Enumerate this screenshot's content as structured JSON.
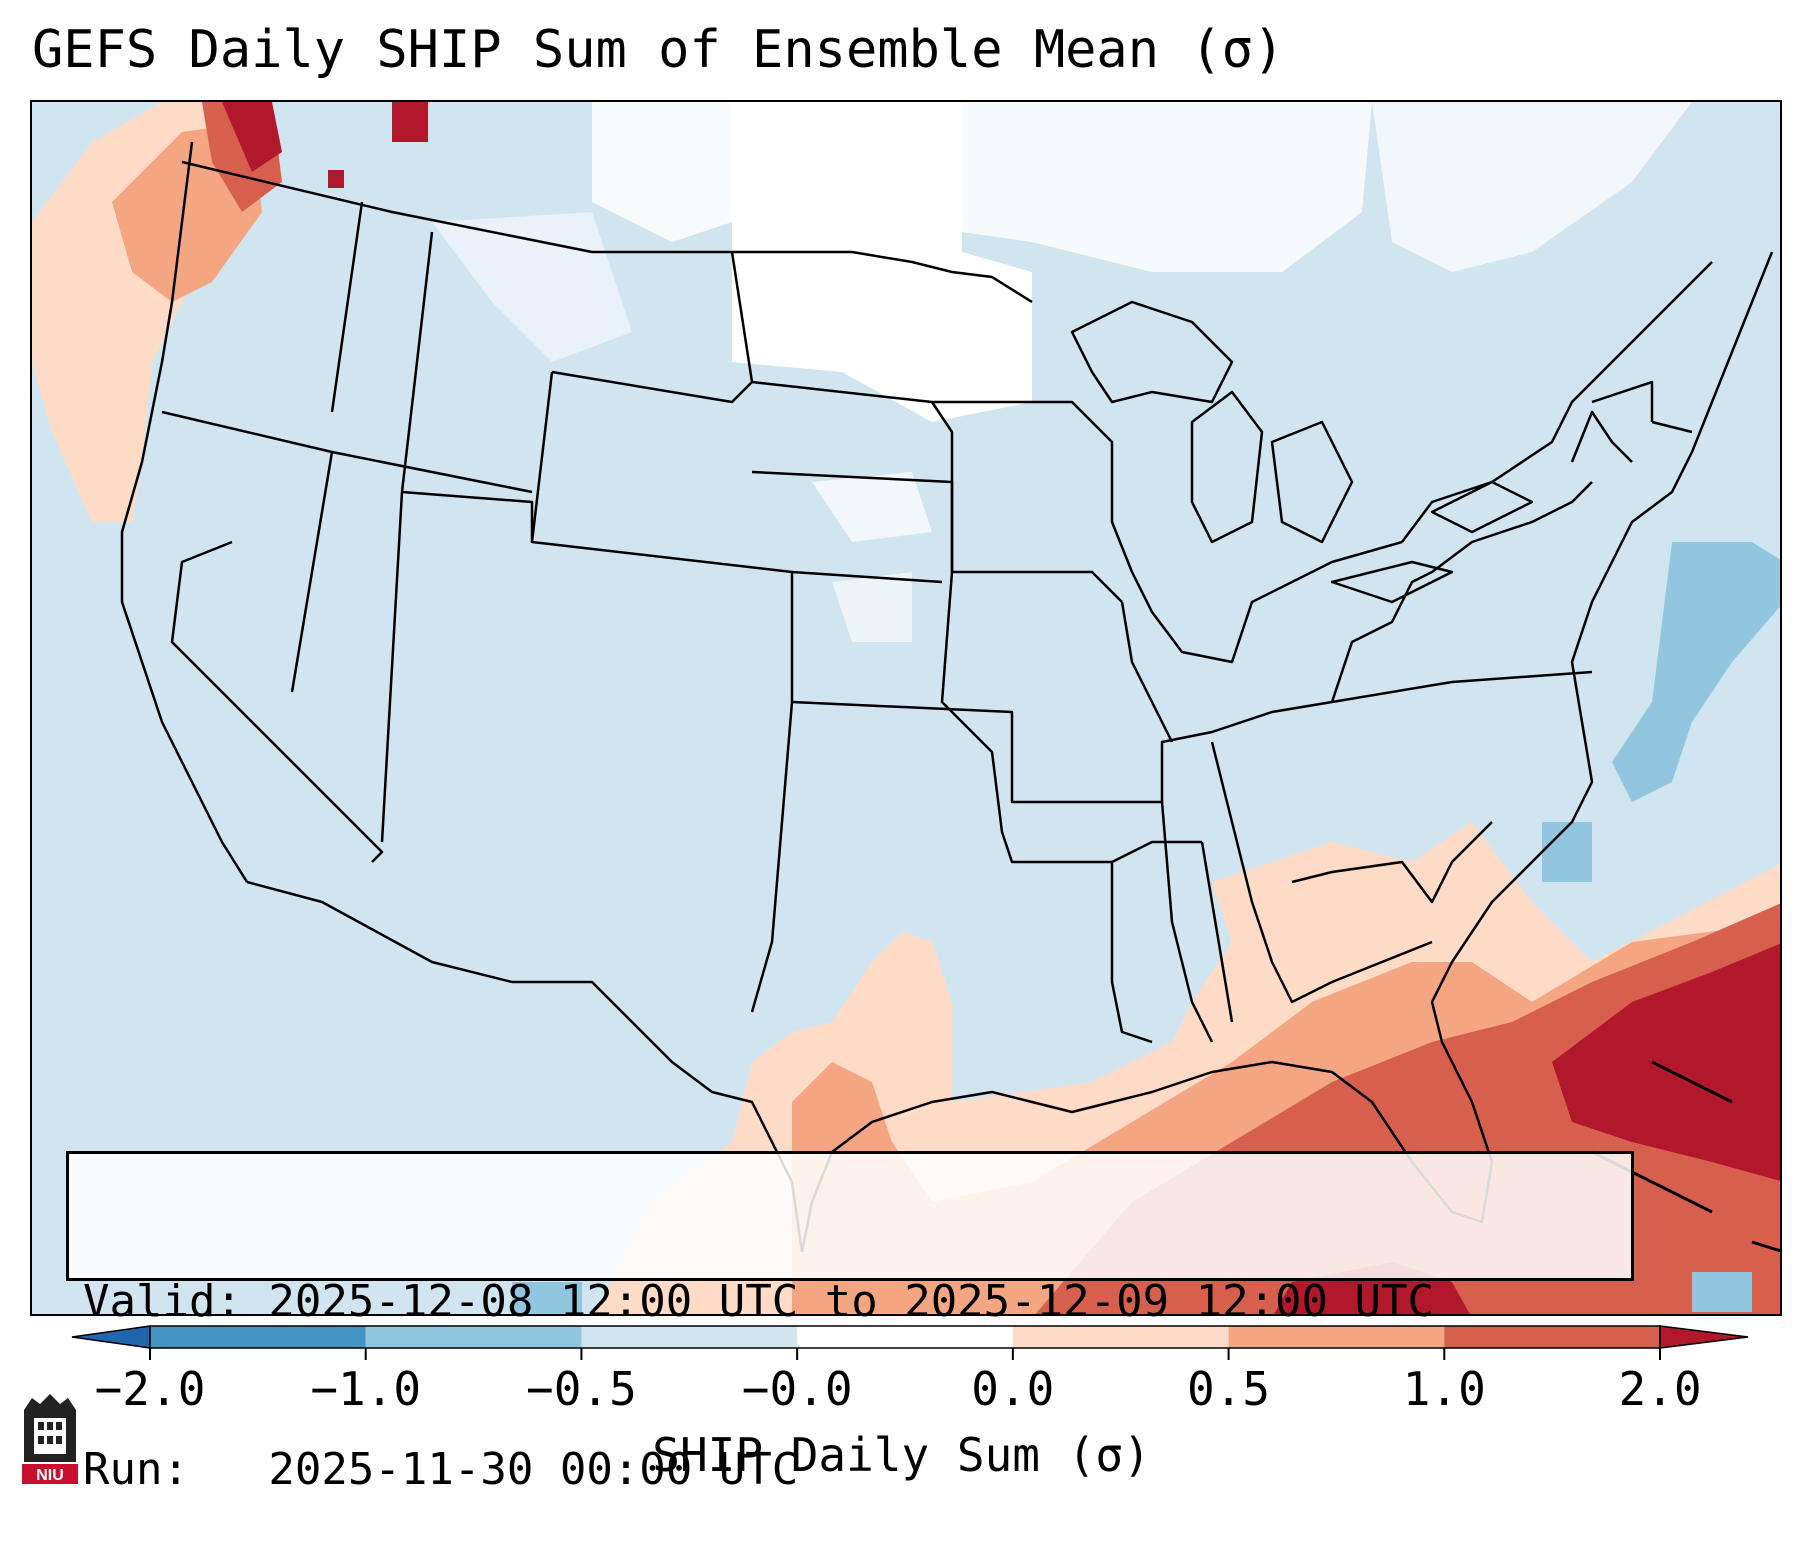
{
  "title": "GEFS Daily SHIP Sum of Ensemble Mean (σ)",
  "info": {
    "valid": "Valid: 2025-12-08 12:00 UTC to 2025-12-09 12:00 UTC",
    "run": "Run:   2025-11-30 00:00 UTC"
  },
  "colorbar": {
    "label": "SHIP Daily Sum (σ)",
    "ticks": [
      "−2.0",
      "−1.0",
      "−0.5",
      "−0.0",
      "0.0",
      "0.5",
      "1.0",
      "2.0"
    ],
    "colors": [
      "#2166ac",
      "#4393c3",
      "#92c5de",
      "#d1e5f0",
      "#ffffff",
      "#fddbc7",
      "#f4a582",
      "#d6604d",
      "#b2182b"
    ]
  },
  "map": {
    "background_class_color": "#d1e5f0",
    "anomaly_colors": {
      "strong_positive": "#b2182b",
      "positive": "#d6604d",
      "moderate_positive": "#f4a582",
      "weak_positive": "#fddbc7",
      "near_zero": "#ffffff",
      "weak_negative": "#92c5de"
    }
  },
  "logo": {
    "text": "NIU"
  }
}
